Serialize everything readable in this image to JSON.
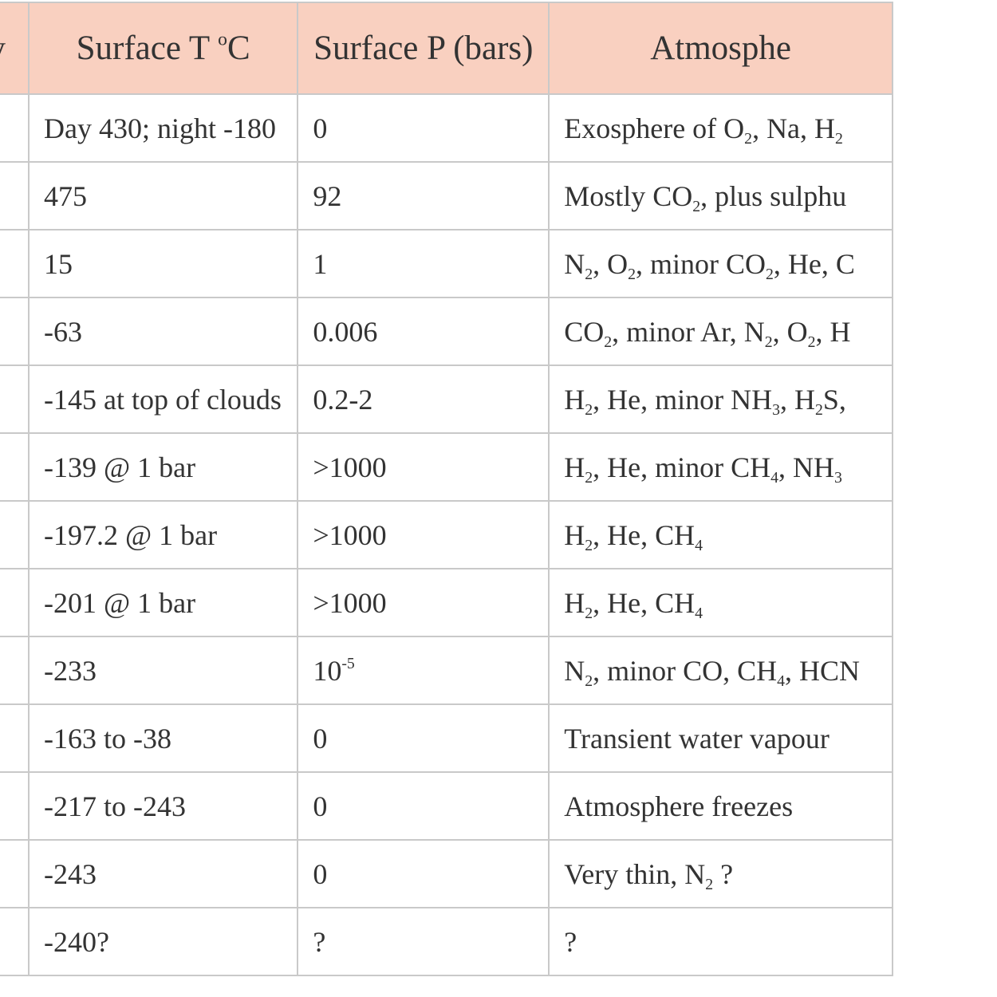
{
  "header": {
    "col0": "body",
    "col1": "Surface T °C",
    "col2": "Surface P (bars)",
    "col3": "Atmosphe"
  },
  "rows": [
    {
      "temp": "Day 430; night -180",
      "pressure": "0",
      "atmosphere": "Exosphere of O₂, Na, H₂"
    },
    {
      "temp": "475",
      "pressure": "92",
      "atmosphere": "Mostly CO₂, plus sulphu"
    },
    {
      "temp": "15",
      "pressure": "1",
      "atmosphere": "N₂, O₂, minor CO₂, He, C"
    },
    {
      "temp": "-63",
      "pressure": "0.006",
      "atmosphere": "CO₂, minor Ar, N₂, O₂, H"
    },
    {
      "temp": "-145 at top of clouds",
      "pressure": "0.2-2",
      "atmosphere": "H₂, He, minor NH₃, H₂S,"
    },
    {
      "temp": "-139 @ 1 bar",
      "pressure": ">1000",
      "atmosphere": "H₂, He, minor CH₄, NH₃"
    },
    {
      "temp": "-197.2 @ 1 bar",
      "pressure": ">1000",
      "atmosphere": "H₂, He, CH₄"
    },
    {
      "temp": "-201 @ 1 bar",
      "pressure": ">1000",
      "atmosphere": "H₂, He, CH₄"
    },
    {
      "temp": "-233",
      "pressure": "10⁻⁵",
      "atmosphere": "N₂, minor CO, CH₄, HCN"
    },
    {
      "temp": "-163 to -38",
      "pressure": "0",
      "atmosphere": "Transient water vapour"
    },
    {
      "temp": "-217 to -243",
      "pressure": "0",
      "atmosphere": "Atmosphere freezes"
    },
    {
      "temp": "-243",
      "pressure": "0",
      "atmosphere": "Very thin, N₂ ?"
    },
    {
      "temp": "-240?",
      "pressure": "?",
      "atmosphere": "?"
    }
  ],
  "colors": {
    "header_bg": "#f9d0c0",
    "grid": "#c9c9c9",
    "text": "#333333"
  }
}
